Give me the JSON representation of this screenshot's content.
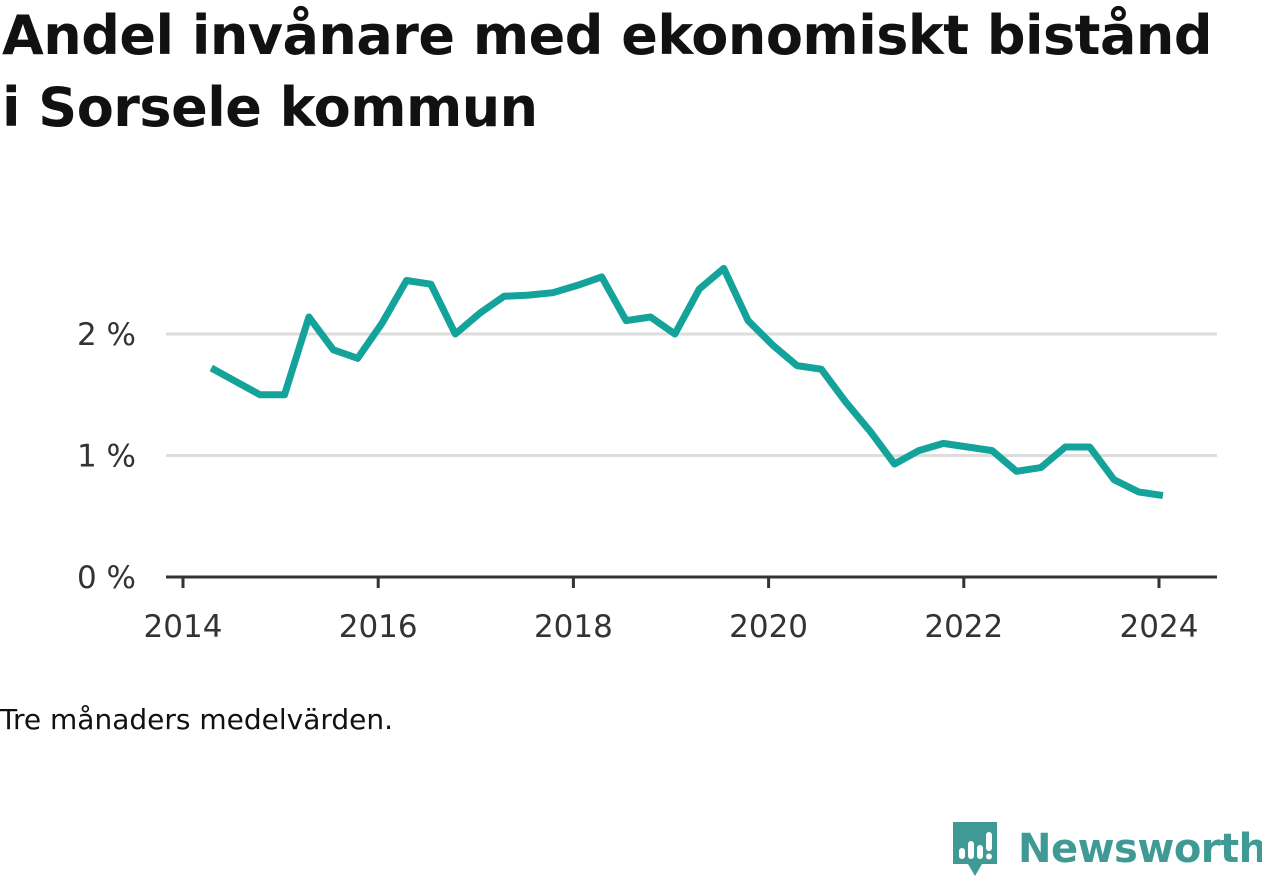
{
  "chart_data": {
    "type": "line",
    "title": "Andel invånare med ekonomiskt bistånd i Sorsele kommun",
    "note": "Tre månaders medelvärden.",
    "xlabel": "",
    "ylabel": "",
    "xlim": [
      2013.95,
      2024.6
    ],
    "ylim": [
      0,
      2.8
    ],
    "x_ticks": [
      {
        "value": 2014,
        "label": "2014"
      },
      {
        "value": 2016,
        "label": "2016"
      },
      {
        "value": 2018,
        "label": "2018"
      },
      {
        "value": 2020,
        "label": "2020"
      },
      {
        "value": 2022,
        "label": "2022"
      },
      {
        "value": 2024,
        "label": "2024"
      }
    ],
    "y_ticks": [
      {
        "value": 0,
        "label": "0 %"
      },
      {
        "value": 1,
        "label": "1 %"
      },
      {
        "value": 2,
        "label": "2 %"
      }
    ],
    "grid": true,
    "line_color": "#13a39a",
    "series": [
      {
        "x": [
          2014.29,
          2014.54,
          2014.79,
          2015.04,
          2015.29,
          2015.54,
          2015.79,
          2016.04,
          2016.29,
          2016.54,
          2016.79,
          2017.04,
          2017.29,
          2017.54,
          2017.79,
          2018.04,
          2018.29,
          2018.54,
          2018.79,
          2019.04,
          2019.29,
          2019.54,
          2019.79,
          2020.04,
          2020.29,
          2020.54,
          2020.79,
          2021.04,
          2021.29,
          2021.54,
          2021.79,
          2022.04,
          2022.29,
          2022.54,
          2022.79,
          2023.04,
          2023.29,
          2023.54,
          2023.79,
          2024.04
        ],
        "values": [
          1.72,
          1.61,
          1.5,
          1.5,
          2.14,
          1.87,
          1.8,
          2.09,
          2.44,
          2.41,
          2.0,
          2.17,
          2.31,
          2.32,
          2.34,
          2.4,
          2.47,
          2.11,
          2.14,
          2.0,
          2.37,
          2.54,
          2.11,
          1.91,
          1.74,
          1.71,
          1.44,
          1.2,
          0.93,
          1.04,
          1.1,
          1.07,
          1.04,
          0.87,
          0.9,
          1.07,
          1.07,
          0.8,
          0.7,
          0.67
        ]
      }
    ]
  },
  "brand": {
    "name": "Newsworthy",
    "logo_icon": "newsworthy-logo-icon",
    "color": "#3f9a95"
  }
}
